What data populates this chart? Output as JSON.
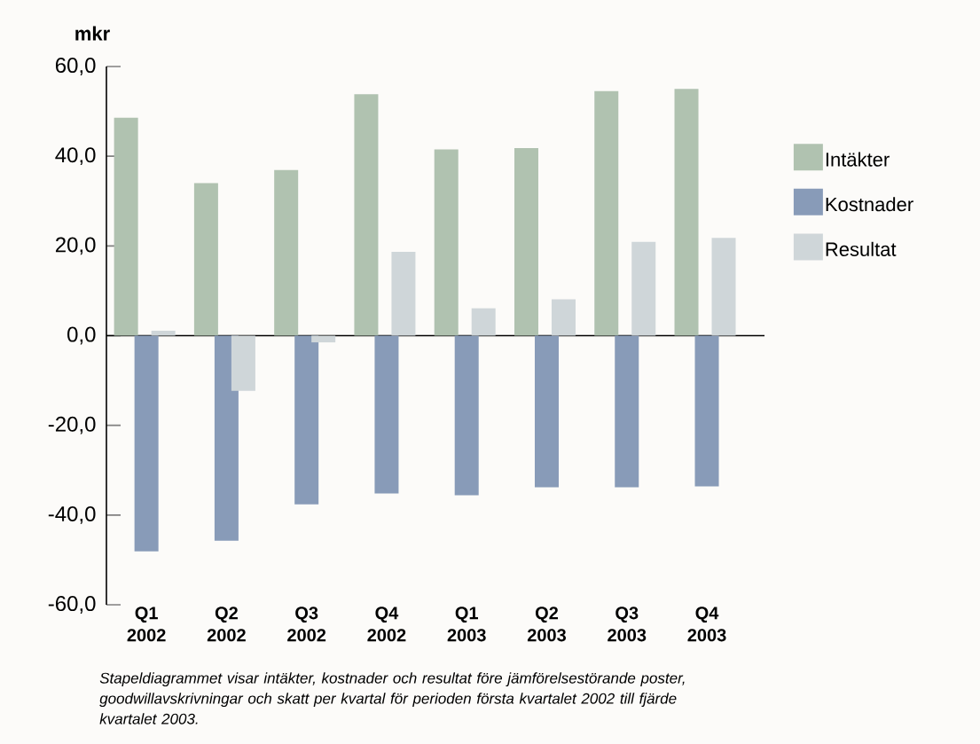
{
  "chart_data": {
    "type": "bar",
    "ylabel": "mkr",
    "categories": [
      "Q1 2002",
      "Q2 2002",
      "Q3 2002",
      "Q4 2002",
      "Q1 2003",
      "Q2 2003",
      "Q3 2003",
      "Q4 2003"
    ],
    "series": [
      {
        "name": "Intäkter",
        "color": "#b0c2b0",
        "values": [
          48.6,
          34.0,
          36.9,
          53.8,
          41.5,
          41.8,
          54.5,
          55.0
        ]
      },
      {
        "name": "Kostnader",
        "color": "#889bb8",
        "values": [
          -48.1,
          -45.7,
          -37.6,
          -35.2,
          -35.6,
          -33.8,
          -33.8,
          -33.6
        ]
      },
      {
        "name": "Resultat",
        "color": "#cfd6d9",
        "values": [
          1.1,
          -12.3,
          -1.5,
          18.7,
          6.1,
          8.1,
          20.9,
          21.8
        ]
      }
    ],
    "ylim": [
      -60,
      60
    ],
    "yticks": [
      {
        "value": -60,
        "label": "-60,0"
      },
      {
        "value": -40,
        "label": "-40,0"
      },
      {
        "value": -20,
        "label": "-20,0"
      },
      {
        "value": 0,
        "label": "0,0"
      },
      {
        "value": 20,
        "label": "20,0"
      },
      {
        "value": 40,
        "label": "40,0"
      },
      {
        "value": 60,
        "label": "60,0"
      }
    ],
    "legend": "top right",
    "annotations": [
      "Stapeldiagrammet visar intäkter, kostnader och resultat före jämförelsestörande poster, goodwillavskrivningar och skatt per kvartal för perioden första kvartalet 2002 till fjärde kvartalet 2003."
    ]
  }
}
